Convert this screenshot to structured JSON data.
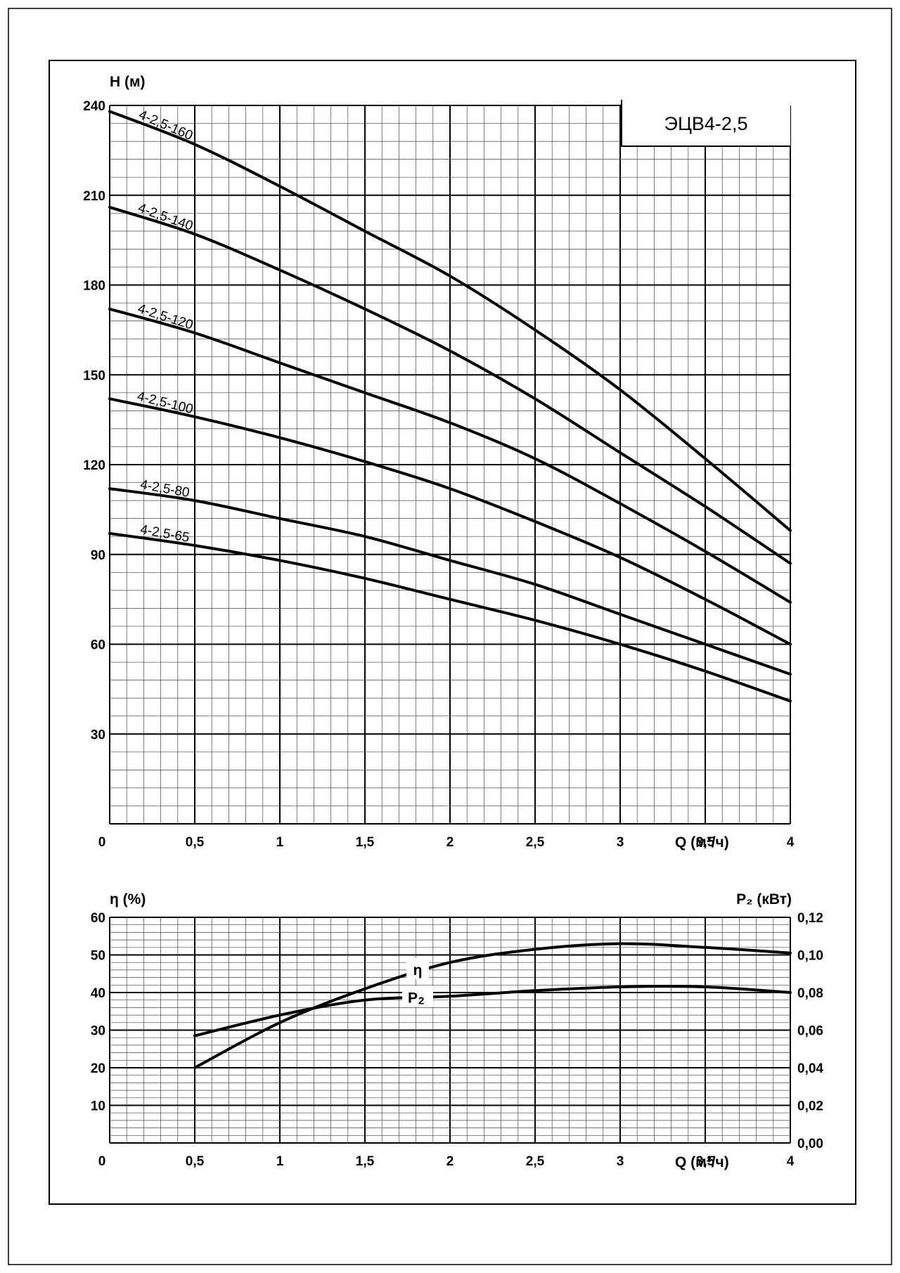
{
  "chart_data": [
    {
      "type": "line",
      "title": "ЭЦВ4-2,5",
      "xlabel": "Q (м³/ч)",
      "ylabel": "H (м)",
      "xlim": [
        0,
        4
      ],
      "ylim": [
        0,
        240
      ],
      "x_ticks": [
        "0",
        "0,5",
        "1",
        "1,5",
        "2",
        "2,5",
        "3",
        "3,5",
        "4"
      ],
      "x_tick_values": [
        0,
        0.5,
        1,
        1.5,
        2,
        2.5,
        3,
        3.5,
        4
      ],
      "y_ticks": [
        "30",
        "60",
        "90",
        "120",
        "150",
        "180",
        "210",
        "240"
      ],
      "y_tick_values": [
        30,
        60,
        90,
        120,
        150,
        180,
        210,
        240
      ],
      "grid": true,
      "series": [
        {
          "name": "4-2,5-160",
          "x": [
            0,
            0.5,
            1,
            1.5,
            2,
            2.5,
            3,
            3.5,
            4
          ],
          "y": [
            238,
            227,
            213,
            198,
            183,
            165,
            145,
            122,
            98
          ]
        },
        {
          "name": "4-2,5-140",
          "x": [
            0,
            0.5,
            1,
            1.5,
            2,
            2.5,
            3,
            3.5,
            4
          ],
          "y": [
            206,
            197,
            185,
            172,
            158,
            142,
            124,
            106,
            87
          ]
        },
        {
          "name": "4-2,5-120",
          "x": [
            0,
            0.5,
            1,
            1.5,
            2,
            2.5,
            3,
            3.5,
            4
          ],
          "y": [
            172,
            164,
            154,
            144,
            134,
            122,
            107,
            91,
            74
          ]
        },
        {
          "name": "4-2,5-100",
          "x": [
            0,
            0.5,
            1,
            1.5,
            2,
            2.5,
            3,
            3.5,
            4
          ],
          "y": [
            142,
            136,
            129,
            121,
            112,
            101,
            89,
            75,
            60
          ]
        },
        {
          "name": "4-2,5-80",
          "x": [
            0,
            0.5,
            1,
            1.5,
            2,
            2.5,
            3,
            3.5,
            4
          ],
          "y": [
            112,
            108,
            102,
            96,
            88,
            80,
            70,
            60,
            50
          ]
        },
        {
          "name": "4-2,5-65",
          "x": [
            0,
            0.5,
            1,
            1.5,
            2,
            2.5,
            3,
            3.5,
            4
          ],
          "y": [
            97,
            93,
            88,
            82,
            75,
            68,
            60,
            51,
            41
          ]
        }
      ]
    },
    {
      "type": "line",
      "xlabel": "Q (м³/ч)",
      "ylabel": "η (%)",
      "ylabel_right": "P₂ (кВт)",
      "xlim": [
        0,
        4
      ],
      "ylim": [
        0,
        60
      ],
      "ylim_right": [
        0,
        0.12
      ],
      "x_ticks": [
        "0",
        "0,5",
        "1",
        "1,5",
        "2",
        "2,5",
        "3",
        "3,5",
        "4"
      ],
      "x_tick_values": [
        0,
        0.5,
        1,
        1.5,
        2,
        2.5,
        3,
        3.5,
        4
      ],
      "y_ticks": [
        "10",
        "20",
        "30",
        "40",
        "50",
        "60"
      ],
      "y_tick_values": [
        10,
        20,
        30,
        40,
        50,
        60
      ],
      "y_ticks_right": [
        "0,00",
        "0,02",
        "0,04",
        "0,06",
        "0,08",
        "0,10",
        "0,12"
      ],
      "y_tick_values_right": [
        0,
        0.02,
        0.04,
        0.06,
        0.08,
        0.1,
        0.12
      ],
      "grid": true,
      "series": [
        {
          "name": "η",
          "axis": "left",
          "x": [
            0.5,
            1,
            1.5,
            2,
            2.5,
            3,
            3.5,
            4
          ],
          "y": [
            20,
            32,
            41,
            48,
            51.5,
            53,
            52,
            50.5
          ]
        },
        {
          "name": "P2",
          "axis": "right",
          "x": [
            0.5,
            1,
            1.5,
            2,
            2.5,
            3,
            3.5,
            4
          ],
          "y": [
            0.057,
            0.068,
            0.076,
            0.078,
            0.081,
            0.083,
            0.083,
            0.08
          ]
        }
      ]
    }
  ]
}
